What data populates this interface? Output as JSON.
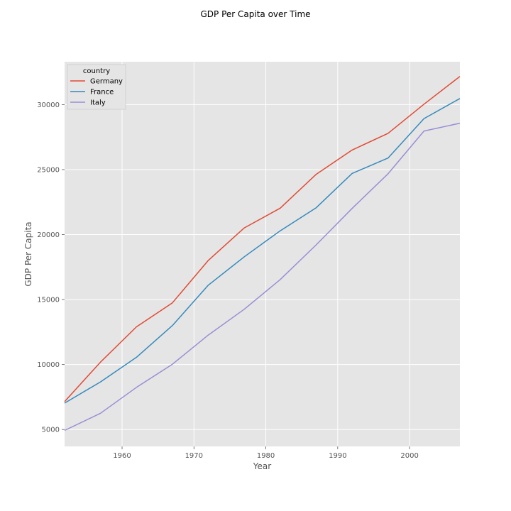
{
  "chart_data": {
    "type": "line",
    "title": "GDP Per Capita over Time",
    "xlabel": "Year",
    "ylabel": "GDP Per Capita",
    "x": [
      1952,
      1957,
      1962,
      1967,
      1972,
      1977,
      1982,
      1987,
      1992,
      1997,
      2002,
      2007
    ],
    "xlim": [
      1952,
      2007
    ],
    "ylim": [
      3700,
      33300
    ],
    "xticks": [
      1960,
      1970,
      1980,
      1990,
      2000
    ],
    "yticks": [
      5000,
      10000,
      15000,
      20000,
      25000,
      30000
    ],
    "grid": true,
    "legend": {
      "title": "country",
      "placement": "top-left"
    },
    "series": [
      {
        "name": "Germany",
        "color": "#E24A33",
        "values": [
          7144,
          10187,
          12902,
          14746,
          18016,
          20513,
          22032,
          24639,
          26505,
          27789,
          30036,
          32170
        ]
      },
      {
        "name": "France",
        "color": "#348ABD",
        "values": [
          7030,
          8663,
          10560,
          13000,
          16107,
          18293,
          20294,
          22066,
          24704,
          25890,
          28926,
          30470
        ]
      },
      {
        "name": "Italy",
        "color": "#988ED5",
        "values": [
          4931,
          6249,
          8244,
          10022,
          12269,
          14256,
          16537,
          19208,
          22014,
          24675,
          27968,
          28570
        ]
      }
    ]
  }
}
